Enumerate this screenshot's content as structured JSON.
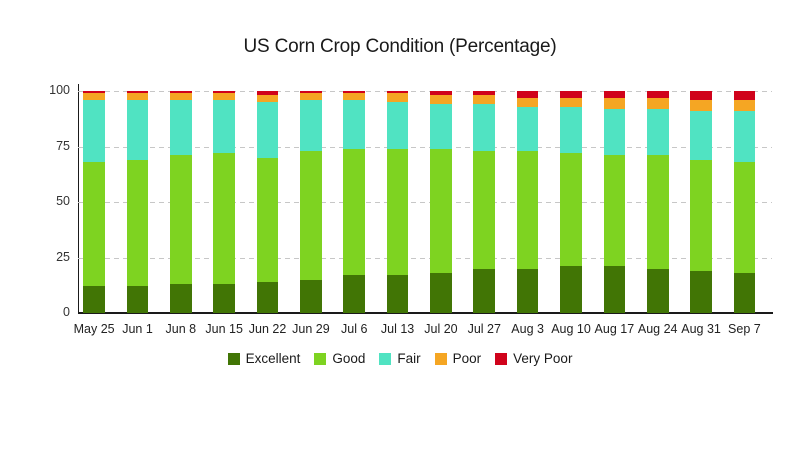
{
  "chart_data": {
    "type": "bar",
    "stacked": true,
    "title": "US Corn Crop Condition (Percentage)",
    "categories": [
      "May 25",
      "Jun 1",
      "Jun 8",
      "Jun 15",
      "Jun 22",
      "Jun 29",
      "Jul 6",
      "Jul 13",
      "Jul 20",
      "Jul 27",
      "Aug 3",
      "Aug 10",
      "Aug 17",
      "Aug 24",
      "Aug 31",
      "Sep 7"
    ],
    "series": [
      {
        "name": "Excellent",
        "color": "#417505",
        "values": [
          12,
          12,
          13,
          13,
          14,
          15,
          17,
          17,
          18,
          20,
          20,
          21,
          21,
          20,
          19,
          18
        ]
      },
      {
        "name": "Good",
        "color": "#7ed321",
        "values": [
          56,
          57,
          58,
          59,
          56,
          58,
          57,
          57,
          56,
          53,
          53,
          51,
          50,
          51,
          50,
          50
        ]
      },
      {
        "name": "Fair",
        "color": "#50e3c2",
        "values": [
          28,
          27,
          25,
          24,
          25,
          23,
          22,
          21,
          20,
          21,
          20,
          21,
          21,
          21,
          22,
          23
        ]
      },
      {
        "name": "Poor",
        "color": "#f5a623",
        "values": [
          3,
          3,
          3,
          3,
          3,
          3,
          3,
          4,
          4,
          4,
          4,
          4,
          5,
          5,
          5,
          5
        ]
      },
      {
        "name": "Very Poor",
        "color": "#d0021b",
        "values": [
          1,
          1,
          1,
          1,
          2,
          1,
          1,
          1,
          2,
          2,
          3,
          3,
          3,
          3,
          4,
          4
        ]
      }
    ],
    "xlabel": "",
    "ylabel": "",
    "ylim": [
      0,
      100
    ],
    "yticks": [
      "0",
      "25",
      "50",
      "75",
      "100"
    ],
    "grid": "horizontal-dashed",
    "legend_position": "bottom",
    "axis_color": "#1a1a1a",
    "gridline_color": "#c7c7c7"
  }
}
